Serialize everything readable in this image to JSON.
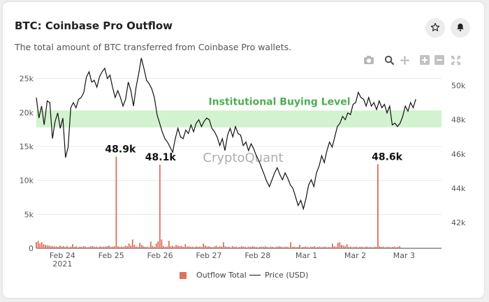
{
  "header": {
    "title": "BTC: Coinbase Pro Outflow",
    "subtitle": "The total amount of BTC transferred from Coinbase Pro wallets."
  },
  "buttons": {
    "favorite_icon": "star-icon",
    "alert_icon": "bell-icon"
  },
  "toolbar": {
    "icons": [
      "camera-icon",
      "zoom-icon",
      "pan-icon",
      "zoom-in-icon",
      "zoom-out-icon",
      "autoscale-icon"
    ]
  },
  "legend": {
    "outflow_label": "Outflow Total",
    "price_label": "Price (USD)"
  },
  "colors": {
    "bar": "#e0705e",
    "line": "#111111",
    "band": "#d3f2cf",
    "band_label": "#4caf50",
    "grid": "#e8e8e8"
  },
  "chart_data": {
    "type": "bar",
    "title": "BTC: Coinbase Pro Outflow",
    "band_label": "Institutional Buying Level",
    "band_range_left_axis": [
      17800,
      20300
    ],
    "watermark": "CryptoQuant",
    "x_ticks": [
      "Feb 24\n2021",
      "Feb 25",
      "Feb 26",
      "Feb 27",
      "Feb 28",
      "Mar 1",
      "Mar 2",
      "Mar 3"
    ],
    "left_axis": {
      "ticks": [
        "0",
        "5k",
        "10k",
        "15k",
        "20k",
        "25k"
      ],
      "range": [
        0,
        26500
      ]
    },
    "right_axis": {
      "ticks": [
        "42k",
        "44k",
        "46k",
        "48k",
        "50k"
      ],
      "range": [
        40500,
        51000
      ]
    },
    "annotations": [
      {
        "label": "48.9k",
        "x_day": 1.93,
        "value": 13500
      },
      {
        "label": "48.1k",
        "x_day": 2.85,
        "value": 12300
      },
      {
        "label": "48.6k",
        "x_day": 8.05,
        "value": 12400
      }
    ],
    "series": [
      {
        "name": "Outflow Total",
        "kind": "bar",
        "axis": "left",
        "x_day_start": 0.0,
        "x_day_step": 0.0417,
        "values": [
          900,
          1100,
          700,
          900,
          600,
          500,
          450,
          400,
          300,
          350,
          250,
          300,
          200,
          400,
          250,
          300,
          200,
          350,
          150,
          250,
          600,
          200,
          300,
          150,
          250,
          200,
          300,
          250,
          150,
          200,
          300,
          350,
          200,
          250,
          150,
          300,
          200,
          250,
          250,
          300,
          400,
          200,
          250,
          300,
          13500,
          300,
          200,
          250,
          200,
          400,
          300,
          700,
          400,
          1300,
          500,
          250,
          200,
          800,
          500,
          300,
          200,
          250,
          150,
          1000,
          350,
          200,
          700,
          1000,
          12300,
          1300,
          350,
          200,
          250,
          1100,
          300,
          350,
          250,
          500,
          400,
          300,
          350,
          200,
          600,
          250,
          300,
          200,
          250,
          150,
          300,
          200,
          250,
          200,
          700,
          400,
          250,
          300,
          200,
          150,
          250,
          400,
          200,
          300,
          250,
          900,
          300,
          200,
          250,
          150,
          300,
          200,
          250,
          150,
          200,
          300,
          250,
          200,
          150,
          250,
          200,
          300,
          250,
          200,
          150,
          200,
          250,
          200,
          300,
          200,
          150,
          250,
          200,
          150,
          200,
          250,
          300,
          200,
          150,
          250,
          200,
          150,
          900,
          200,
          250,
          150,
          200,
          500,
          150,
          200,
          250,
          200,
          150,
          250,
          200,
          300,
          150,
          200,
          250,
          150,
          200,
          250,
          150,
          200,
          150,
          700,
          300,
          200,
          800,
          900,
          500,
          400,
          300,
          600,
          200,
          250,
          150,
          200,
          250,
          150,
          200,
          250,
          150,
          200,
          250,
          150,
          200,
          150,
          200,
          200,
          12400,
          300,
          200,
          250,
          150,
          200,
          200,
          150,
          200,
          250,
          150,
          200,
          300
        ]
      },
      {
        "name": "Price (USD)",
        "kind": "line",
        "axis": "right",
        "points": [
          [
            0.0,
            49300
          ],
          [
            0.06,
            48100
          ],
          [
            0.12,
            48800
          ],
          [
            0.18,
            47700
          ],
          [
            0.25,
            49100
          ],
          [
            0.31,
            49000
          ],
          [
            0.37,
            46900
          ],
          [
            0.43,
            47900
          ],
          [
            0.49,
            48400
          ],
          [
            0.55,
            47500
          ],
          [
            0.61,
            48100
          ],
          [
            0.67,
            45800
          ],
          [
            0.73,
            46400
          ],
          [
            0.79,
            48700
          ],
          [
            0.85,
            49000
          ],
          [
            0.91,
            48700
          ],
          [
            0.97,
            49200
          ],
          [
            1.03,
            49300
          ],
          [
            1.09,
            49600
          ],
          [
            1.15,
            50500
          ],
          [
            1.21,
            50800
          ],
          [
            1.27,
            50200
          ],
          [
            1.33,
            50300
          ],
          [
            1.39,
            49900
          ],
          [
            1.45,
            50500
          ],
          [
            1.51,
            50800
          ],
          [
            1.57,
            51000
          ],
          [
            1.63,
            50400
          ],
          [
            1.69,
            50600
          ],
          [
            1.75,
            49900
          ],
          [
            1.81,
            49300
          ],
          [
            1.87,
            49700
          ],
          [
            1.93,
            49300
          ],
          [
            1.99,
            48800
          ],
          [
            2.05,
            49200
          ],
          [
            2.11,
            50200
          ],
          [
            2.17,
            49700
          ],
          [
            2.23,
            48800
          ],
          [
            2.29,
            49900
          ],
          [
            2.35,
            50700
          ],
          [
            2.41,
            51600
          ],
          [
            2.47,
            51000
          ],
          [
            2.53,
            50300
          ],
          [
            2.59,
            50100
          ],
          [
            2.65,
            49800
          ],
          [
            2.71,
            49300
          ],
          [
            2.77,
            48300
          ],
          [
            2.83,
            47800
          ],
          [
            2.89,
            47300
          ],
          [
            2.95,
            46900
          ],
          [
            3.01,
            46700
          ],
          [
            3.07,
            46400
          ],
          [
            3.13,
            46100
          ],
          [
            3.19,
            46900
          ],
          [
            3.25,
            47500
          ],
          [
            3.31,
            47000
          ],
          [
            3.37,
            46900
          ],
          [
            3.43,
            47400
          ],
          [
            3.49,
            47200
          ],
          [
            3.55,
            47700
          ],
          [
            3.61,
            47300
          ],
          [
            3.67,
            47800
          ],
          [
            3.73,
            48000
          ],
          [
            3.79,
            47600
          ],
          [
            3.85,
            47900
          ],
          [
            3.91,
            48100
          ],
          [
            3.97,
            48000
          ],
          [
            4.03,
            47500
          ],
          [
            4.09,
            47300
          ],
          [
            4.15,
            47000
          ],
          [
            4.21,
            46500
          ],
          [
            4.27,
            46900
          ],
          [
            4.33,
            46200
          ],
          [
            4.39,
            47100
          ],
          [
            4.45,
            47500
          ],
          [
            4.51,
            47000
          ],
          [
            4.57,
            47600
          ],
          [
            4.63,
            47200
          ],
          [
            4.69,
            47100
          ],
          [
            4.75,
            46500
          ],
          [
            4.81,
            46700
          ],
          [
            4.87,
            46200
          ],
          [
            4.93,
            46600
          ],
          [
            4.99,
            46300
          ],
          [
            5.05,
            45900
          ],
          [
            5.11,
            45600
          ],
          [
            5.17,
            45200
          ],
          [
            5.23,
            44800
          ],
          [
            5.29,
            44400
          ],
          [
            5.35,
            44100
          ],
          [
            5.41,
            44500
          ],
          [
            5.47,
            44900
          ],
          [
            5.53,
            45200
          ],
          [
            5.59,
            44800
          ],
          [
            5.65,
            44500
          ],
          [
            5.71,
            44900
          ],
          [
            5.77,
            44600
          ],
          [
            5.83,
            44200
          ],
          [
            5.89,
            44000
          ],
          [
            5.95,
            43500
          ],
          [
            6.01,
            43000
          ],
          [
            6.07,
            43300
          ],
          [
            6.13,
            42800
          ],
          [
            6.19,
            43400
          ],
          [
            6.25,
            44200
          ],
          [
            6.31,
            44500
          ],
          [
            6.37,
            44100
          ],
          [
            6.43,
            44900
          ],
          [
            6.49,
            45300
          ],
          [
            6.55,
            45900
          ],
          [
            6.61,
            45500
          ],
          [
            6.67,
            46200
          ],
          [
            6.73,
            46700
          ],
          [
            6.79,
            46400
          ],
          [
            6.85,
            47000
          ],
          [
            6.91,
            47600
          ],
          [
            6.97,
            47800
          ],
          [
            7.03,
            48200
          ],
          [
            7.09,
            48000
          ],
          [
            7.15,
            48400
          ],
          [
            7.21,
            48300
          ],
          [
            7.27,
            48900
          ],
          [
            7.33,
            49000
          ],
          [
            7.39,
            49600
          ],
          [
            7.45,
            49300
          ],
          [
            7.51,
            49200
          ],
          [
            7.57,
            48800
          ],
          [
            7.63,
            49300
          ],
          [
            7.69,
            48800
          ],
          [
            7.75,
            49000
          ],
          [
            7.81,
            48600
          ],
          [
            7.87,
            49100
          ],
          [
            7.93,
            48700
          ],
          [
            7.99,
            48900
          ],
          [
            8.05,
            48400
          ],
          [
            8.11,
            48800
          ],
          [
            8.17,
            47700
          ],
          [
            8.23,
            47800
          ],
          [
            8.29,
            47600
          ],
          [
            8.35,
            47800
          ],
          [
            8.41,
            48200
          ],
          [
            8.47,
            48800
          ],
          [
            8.53,
            48500
          ],
          [
            8.59,
            49000
          ],
          [
            8.65,
            48700
          ],
          [
            8.71,
            49200
          ]
        ]
      }
    ],
    "grid": true,
    "legend_position": "bottom"
  }
}
